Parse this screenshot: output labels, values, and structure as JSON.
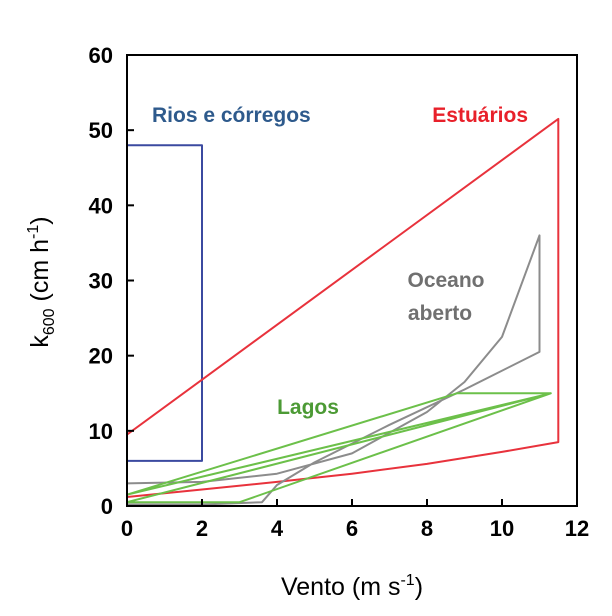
{
  "chart_data": {
    "type": "line",
    "xlabel": "Vento (m s",
    "xlabel_sup": "-1",
    "xlabel_close": ")",
    "ylabel_main": "k",
    "ylabel_sub": "600",
    "ylabel_rest": " (cm h",
    "ylabel_sup": "-1",
    "ylabel_close": ")",
    "xlim": [
      0,
      12
    ],
    "ylim": [
      0,
      60
    ],
    "x_ticks": [
      0,
      2,
      4,
      6,
      8,
      10,
      12
    ],
    "y_ticks": [
      0,
      10,
      20,
      30,
      40,
      50,
      60
    ],
    "x_tick_labels": [
      "0",
      "2",
      "4",
      "6",
      "8",
      "10",
      "12"
    ],
    "y_tick_labels": [
      "0",
      "10",
      "20",
      "30",
      "40",
      "50",
      "60"
    ],
    "grid": false,
    "series": [
      {
        "name": "Rios e córregos",
        "color": "#3b4aa0",
        "label_color": "#2e5a8c",
        "points": [
          [
            0,
            6
          ],
          [
            2,
            6
          ],
          [
            2,
            48
          ],
          [
            0,
            48
          ]
        ]
      },
      {
        "name": "Estuários",
        "color": "#e8323c",
        "label_color": "#e8202a",
        "points": [
          [
            0,
            9.5
          ],
          [
            11.5,
            51.5
          ],
          [
            11.5,
            8.5
          ],
          [
            10,
            7.2
          ],
          [
            8,
            5.6
          ],
          [
            6,
            4.3
          ],
          [
            4,
            3.2
          ],
          [
            2,
            2.2
          ],
          [
            0,
            1.2
          ]
        ]
      },
      {
        "name": "Oceano aberto",
        "color": "#8c8c8c",
        "label_color": "#707070",
        "points": [
          [
            0,
            3
          ],
          [
            2,
            3.2
          ],
          [
            4,
            4.3
          ],
          [
            6,
            7
          ],
          [
            8,
            12.5
          ],
          [
            9,
            16.5
          ],
          [
            10,
            22.5
          ],
          [
            11,
            36
          ],
          [
            11,
            20.5
          ],
          [
            9,
            15.5
          ],
          [
            7,
            10.8
          ],
          [
            5,
            5.8
          ],
          [
            4,
            2.8
          ],
          [
            3.6,
            0.5
          ],
          [
            2,
            0.2
          ],
          [
            0,
            0.2
          ]
        ]
      },
      {
        "name": "Lagos",
        "color": "#6cc04a",
        "label_color": "#4c9a35",
        "points": [
          [
            0,
            1.5
          ],
          [
            8.8,
            15
          ],
          [
            11.3,
            15
          ],
          [
            0,
            0.5
          ],
          [
            3,
            0.5
          ],
          [
            11.3,
            15
          ]
        ]
      }
    ]
  }
}
